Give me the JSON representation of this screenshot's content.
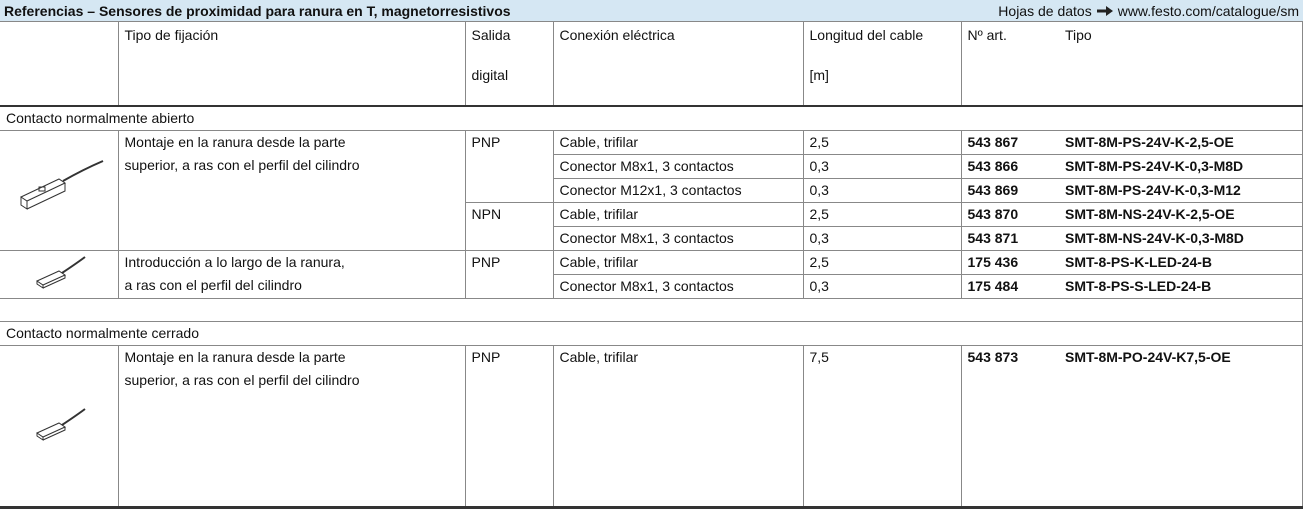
{
  "header": {
    "title": "Referencias – Sensores de proximidad para ranura en T, magnetorresistivos",
    "datasheet_label": "Hojas de datos",
    "datasheet_url": "www.festo.com/catalogue/sm"
  },
  "table": {
    "columns": [
      [
        "Tipo de fijación"
      ],
      [
        "Salida",
        "digital"
      ],
      [
        "Conexión eléctrica"
      ],
      [
        "Longitud del cable",
        "[m]"
      ],
      [
        "Nº art."
      ],
      [
        "Tipo"
      ]
    ],
    "sections": [
      {
        "label": "Contacto normalmente abierto",
        "products": [
          {
            "mounting": [
              "Montaje en la ranura desde la parte",
              "superior, a ras con el perfil del cilindro"
            ],
            "outputs": [
              {
                "output": "PNP",
                "variants": [
                  {
                    "connection": "Cable, trifilar",
                    "length": "2,5",
                    "part_no": "543 867",
                    "type": "SMT-8M-PS-24V-K-2,5-OE"
                  },
                  {
                    "connection": "Conector M8x1, 3 contactos",
                    "length": "0,3",
                    "part_no": "543 866",
                    "type": "SMT-8M-PS-24V-K-0,3-M8D"
                  },
                  {
                    "connection": "Conector M12x1, 3 contactos",
                    "length": "0,3",
                    "part_no": "543 869",
                    "type": "SMT-8M-PS-24V-K-0,3-M12"
                  }
                ]
              },
              {
                "output": "NPN",
                "variants": [
                  {
                    "connection": "Cable, trifilar",
                    "length": "2,5",
                    "part_no": "543 870",
                    "type": "SMT-8M-NS-24V-K-2,5-OE"
                  },
                  {
                    "connection": "Conector M8x1, 3 contactos",
                    "length": "0,3",
                    "part_no": "543 871",
                    "type": "SMT-8M-NS-24V-K-0,3-M8D"
                  }
                ]
              }
            ]
          },
          {
            "mounting": [
              "Introducción a lo largo de la ranura,",
              "a ras con el perfil del cilindro"
            ],
            "outputs": [
              {
                "output": "PNP",
                "variants": [
                  {
                    "connection": "Cable, trifilar",
                    "length": "2,5",
                    "part_no": "175 436",
                    "type": "SMT-8-PS-K-LED-24-B"
                  },
                  {
                    "connection": "Conector M8x1, 3 contactos",
                    "length": "0,3",
                    "part_no": "175 484",
                    "type": "SMT-8-PS-S-LED-24-B"
                  }
                ]
              }
            ]
          }
        ]
      },
      {
        "label": "Contacto normalmente cerrado",
        "products": [
          {
            "mounting": [
              "Montaje en la ranura desde la parte",
              "superior, a ras con el perfil del cilindro"
            ],
            "outputs": [
              {
                "output": "PNP",
                "variants": [
                  {
                    "connection": "Cable, trifilar",
                    "length": "7,5",
                    "part_no": "543 873",
                    "type": "SMT-8M-PO-24V-K7,5-OE"
                  }
                ]
              }
            ]
          }
        ]
      }
    ]
  }
}
